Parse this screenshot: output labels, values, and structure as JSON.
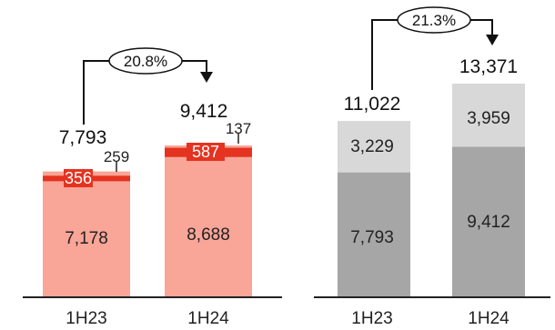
{
  "chart_data": [
    {
      "type": "bar",
      "stacked": true,
      "categories": [
        "1H23",
        "1H24"
      ],
      "series": [
        {
          "values": [
            7178,
            8688
          ],
          "color": "#f9a597"
        },
        {
          "values": [
            356,
            587
          ],
          "color": "#e43320"
        },
        {
          "values": [
            259,
            137
          ],
          "color": "#f9a597"
        }
      ],
      "segment_labels": [
        [
          "7,178",
          "8,688"
        ],
        [
          "356",
          "587"
        ],
        [
          "259",
          "137"
        ]
      ],
      "totals": [
        7793,
        9412
      ],
      "total_labels": [
        "7,793",
        "9,412"
      ],
      "growth_label": "20.8%",
      "ylim": [
        0,
        9412
      ]
    },
    {
      "type": "bar",
      "stacked": true,
      "categories": [
        "1H23",
        "1H24"
      ],
      "series": [
        {
          "values": [
            7793,
            9412
          ],
          "color": "#a6a6a6"
        },
        {
          "values": [
            3229,
            3959
          ],
          "color": "#d8d8d8"
        }
      ],
      "segment_labels": [
        [
          "7,793",
          "9,412"
        ],
        [
          "3,229",
          "3,959"
        ]
      ],
      "totals": [
        11022,
        13371
      ],
      "total_labels": [
        "11,022",
        "13,371"
      ],
      "growth_label": "21.3%",
      "ylim": [
        0,
        13371
      ]
    }
  ]
}
